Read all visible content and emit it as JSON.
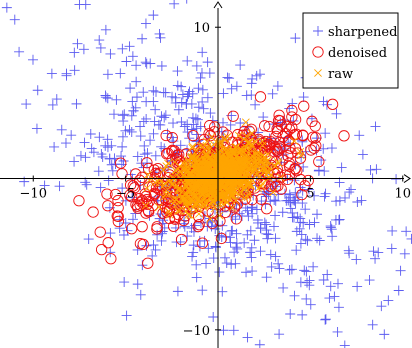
{
  "chart_data": {
    "type": "scatter",
    "title": "",
    "xlabel": "",
    "ylabel": "",
    "xlim": [
      -11.8,
      10.5
    ],
    "ylim": [
      -11.2,
      11.8
    ],
    "axis_style": "center",
    "grid": false,
    "legend_position": "top-right",
    "xticks": [
      -10,
      -5,
      5,
      10
    ],
    "yticks": [
      -10,
      10
    ],
    "tick_labels": {
      "x": [
        "−10",
        "−5",
        "5",
        "10"
      ],
      "y": [
        "−10",
        "10"
      ]
    },
    "series": [
      {
        "name": "sharpened",
        "marker": "plus",
        "color": "#5b5bf0",
        "distribution": {
          "n": 650,
          "mean": [
            0,
            0
          ],
          "sd": [
            4.2,
            4.2
          ],
          "corr": -0.45
        },
        "points": [
          [
            -11,
            10.5
          ],
          [
            -7.5,
            11.5
          ],
          [
            -3.5,
            10.8
          ],
          [
            1.2,
            7.5
          ],
          [
            -8.2,
            6.8
          ],
          [
            -9.8,
            3.3
          ],
          [
            -7,
            -4
          ],
          [
            6.3,
            -7.8
          ],
          [
            1.6,
            -10.5
          ],
          [
            9,
            -10.3
          ],
          [
            8.5,
            -5.3
          ],
          [
            5.8,
            3
          ],
          [
            -3,
            -3.5
          ],
          [
            4,
            -6
          ],
          [
            -5.5,
            5.2
          ]
        ]
      },
      {
        "name": "denoised",
        "marker": "circle",
        "color": "#ee1111",
        "distribution": {
          "n": 550,
          "mean": [
            0,
            0.3
          ],
          "sd": [
            2.5,
            1.6
          ],
          "corr": 0.6
        },
        "points": [
          [
            -5.8,
            -5.3
          ],
          [
            -3.8,
            -5.6
          ],
          [
            -6.3,
            -4.7
          ],
          [
            -4.2,
            -4.3
          ],
          [
            2.3,
            5.4
          ],
          [
            4.2,
            3.9
          ],
          [
            5.2,
            2
          ],
          [
            -5.4,
            -2.5
          ],
          [
            4,
            4.5
          ]
        ]
      },
      {
        "name": "raw",
        "marker": "x",
        "color": "#ffa500",
        "distribution": {
          "n": 900,
          "mean": [
            0,
            0.2
          ],
          "sd": [
            1.25,
            1
          ],
          "corr": 0.35
        },
        "points": [
          [
            -2.8,
            -0.8
          ],
          [
            2.7,
            1.6
          ],
          [
            -1.6,
            -2.4
          ],
          [
            1.4,
            2.6
          ]
        ]
      }
    ]
  }
}
